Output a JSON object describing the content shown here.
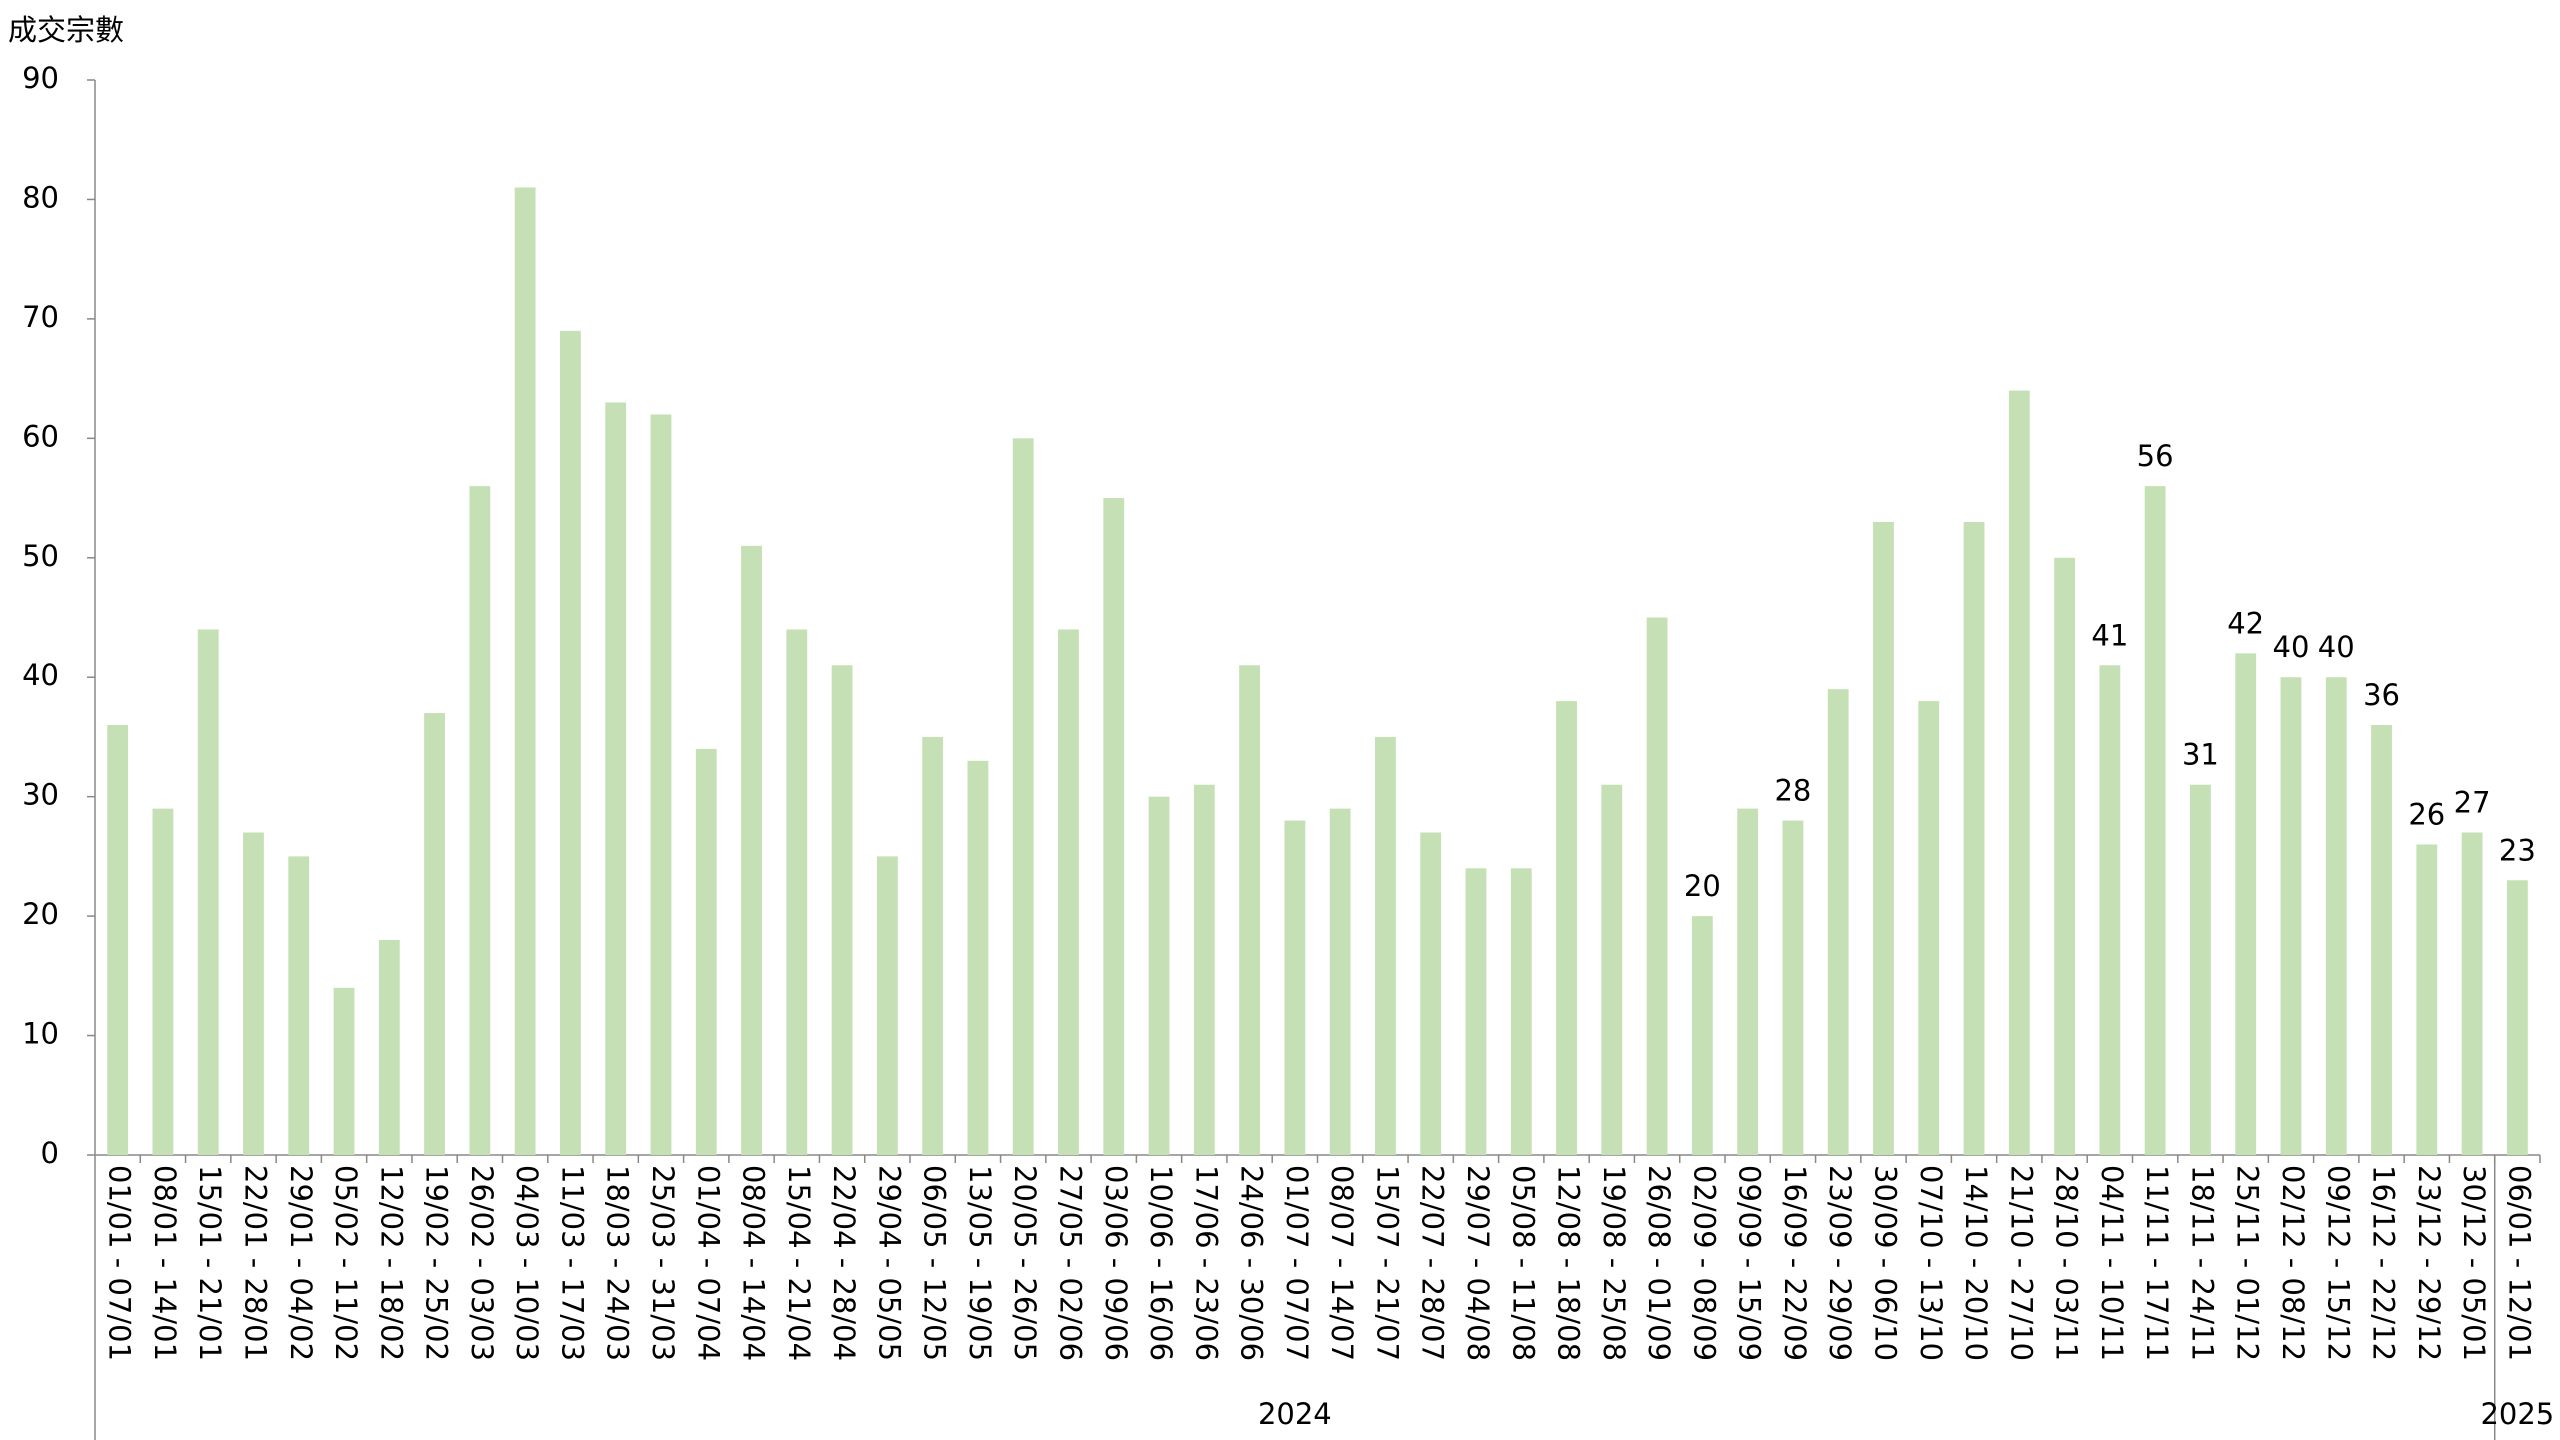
{
  "chart_data": {
    "type": "bar",
    "y_axis_title": "成交宗數",
    "categories": [
      "01/01 - 07/01",
      "08/01 - 14/01",
      "15/01 - 21/01",
      "22/01 - 28/01",
      "29/01 - 04/02",
      "05/02 - 11/02",
      "12/02 - 18/02",
      "19/02 - 25/02",
      "26/02 - 03/03",
      "04/03 - 10/03",
      "11/03 - 17/03",
      "18/03 - 24/03",
      "25/03 - 31/03",
      "01/04 - 07/04",
      "08/04 - 14/04",
      "15/04 - 21/04",
      "22/04 - 28/04",
      "29/04 - 05/05",
      "06/05 - 12/05",
      "13/05 - 19/05",
      "20/05 - 26/05",
      "27/05 - 02/06",
      "03/06 - 09/06",
      "10/06 - 16/06",
      "17/06 - 23/06",
      "24/06 - 30/06",
      "01/07 - 07/07",
      "08/07 - 14/07",
      "15/07 - 21/07",
      "22/07 - 28/07",
      "29/07 - 04/08",
      "05/08 - 11/08",
      "12/08 - 18/08",
      "19/08 - 25/08",
      "26/08 - 01/09",
      "02/09 - 08/09",
      "09/09 - 15/09",
      "16/09 - 22/09",
      "23/09 - 29/09",
      "30/09 - 06/10",
      "07/10 - 13/10",
      "14/10 - 20/10",
      "21/10 - 27/10",
      "28/10 - 03/11",
      "04/11 - 10/11",
      "11/11 - 17/11",
      "18/11 - 24/11",
      "25/11 - 01/12",
      "02/12 - 08/12",
      "09/12 - 15/12",
      "16/12 - 22/12",
      "23/12 - 29/12",
      "30/12 - 05/01",
      "06/01 - 12/01"
    ],
    "years": [
      "2024",
      "2024",
      "2024",
      "2024",
      "2024",
      "2024",
      "2024",
      "2024",
      "2024",
      "2024",
      "2024",
      "2024",
      "2024",
      "2024",
      "2024",
      "2024",
      "2024",
      "2024",
      "2024",
      "2024",
      "2024",
      "2024",
      "2024",
      "2024",
      "2024",
      "2024",
      "2024",
      "2024",
      "2024",
      "2024",
      "2024",
      "2024",
      "2024",
      "2024",
      "2024",
      "2024",
      "2024",
      "2024",
      "2024",
      "2024",
      "2024",
      "2024",
      "2024",
      "2024",
      "2024",
      "2024",
      "2024",
      "2024",
      "2024",
      "2024",
      "2024",
      "2024",
      "2024",
      "2025"
    ],
    "values": [
      36,
      29,
      44,
      27,
      25,
      14,
      18,
      37,
      56,
      81,
      69,
      63,
      62,
      34,
      51,
      44,
      41,
      25,
      35,
      33,
      60,
      44,
      55,
      30,
      31,
      41,
      28,
      29,
      35,
      27,
      24,
      24,
      38,
      31,
      45,
      20,
      29,
      28,
      39,
      53,
      38,
      53,
      64,
      50,
      41,
      56,
      31,
      42,
      40,
      40,
      36,
      26,
      27,
      23
    ],
    "value_labels": [
      null,
      null,
      null,
      null,
      null,
      null,
      null,
      null,
      null,
      null,
      null,
      null,
      null,
      null,
      null,
      null,
      null,
      null,
      null,
      null,
      null,
      null,
      null,
      null,
      null,
      null,
      null,
      null,
      null,
      null,
      null,
      null,
      null,
      null,
      null,
      "20",
      null,
      "28",
      null,
      null,
      null,
      null,
      null,
      null,
      "41",
      "56",
      "31",
      "42",
      "40",
      "40",
      "36",
      "26",
      "27",
      "23"
    ],
    "color": "#c5e0b4",
    "ylim": [
      0,
      90
    ],
    "yticks": [
      0,
      10,
      20,
      30,
      40,
      50,
      60,
      70,
      80,
      90
    ],
    "grid": false
  }
}
